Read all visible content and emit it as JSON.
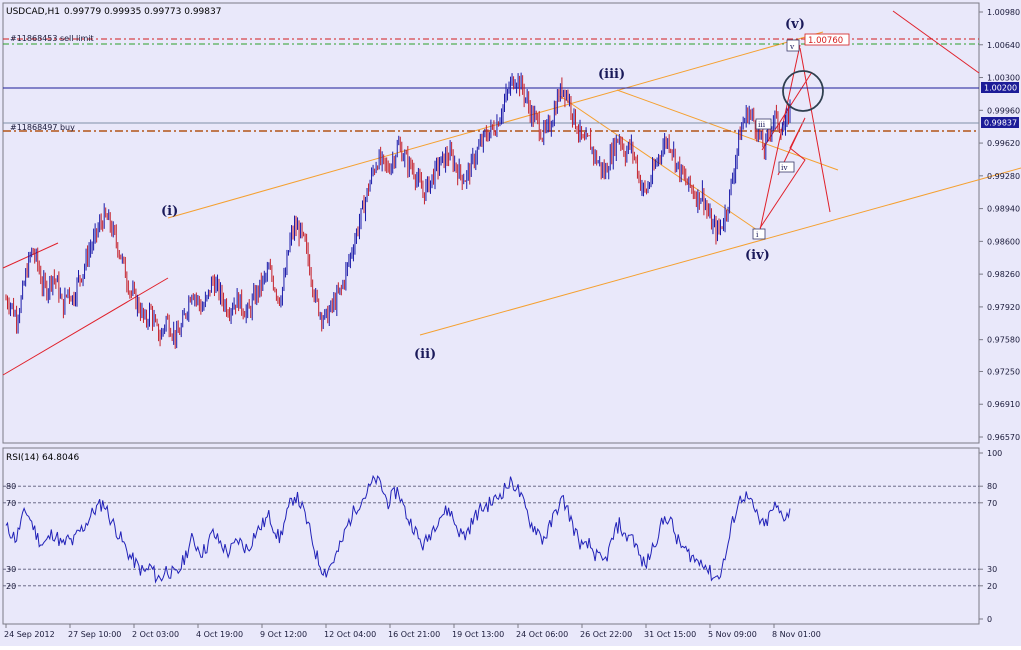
{
  "colors": {
    "background": "#e9e8fa",
    "frame": "#7a7a86",
    "bull_bar": "#1a1aa8",
    "bear_bar": "#c4202a",
    "channel": "#f5a030",
    "red_line": "#e0202a",
    "resistance": "#1c1c98",
    "rsi_line": "#2222b8",
    "rsi_level": "#5a5a78",
    "sell_limit": "#d41c1c",
    "sell_limit_2": "#2aa02a",
    "buy_line": "#b25418",
    "current_price_line": "#8090a8",
    "wave_label": "#1a1a5a",
    "circle": "#2f3f4f"
  },
  "header": {
    "symbol": "USDCAD,H1",
    "ohlc": "0.99779 0.99935 0.99773 0.99837"
  },
  "orders": {
    "sell_limit": "#11868453 sell limit",
    "buy": "#11868497 buy"
  },
  "price_tags": {
    "target": "1.00760",
    "resistance": "1.00200",
    "current": "0.99837"
  },
  "wave_labels": {
    "i": "(i)",
    "ii": "(ii)",
    "iii": "(iii)",
    "iv": "(iv)",
    "v": "(v)",
    "sub_i": "i",
    "sub_iii": "iii",
    "sub_iv": "iv",
    "sub_v": "v"
  },
  "rsi": {
    "title": "RSI(14) 64.8046",
    "left_levels": [
      "80",
      "70",
      "30",
      "20"
    ],
    "right_levels": [
      "100",
      "80",
      "70",
      "30",
      "20",
      "0"
    ]
  },
  "chart_data": {
    "type": "candlestick",
    "title": "USDCAD,H1",
    "y_ticks": [
      "1.00980",
      "1.00640",
      "1.00300",
      "0.99960",
      "0.99620",
      "0.99280",
      "0.98940",
      "0.98600",
      "0.98260",
      "0.97920",
      "0.97580",
      "0.97250",
      "0.96910",
      "0.96570"
    ],
    "ylim": [
      0.9657,
      1.0098
    ],
    "x_ticks": [
      "24 Sep 2012",
      "27 Sep 10:00",
      "2 Oct 03:00",
      "4 Oct 19:00",
      "9 Oct 12:00",
      "12 Oct 04:00",
      "16 Oct 21:00",
      "19 Oct 13:00",
      "24 Oct 06:00",
      "26 Oct 22:00",
      "31 Oct 15:00",
      "5 Nov 09:00",
      "8 Nov 01:00"
    ],
    "price_path": [
      0.98,
      0.9795,
      0.978,
      0.98,
      0.983,
      0.985,
      0.984,
      0.9815,
      0.981,
      0.9825,
      0.9815,
      0.979,
      0.981,
      0.98,
      0.982,
      0.983,
      0.985,
      0.986,
      0.9875,
      0.9885,
      0.988,
      0.9865,
      0.985,
      0.983,
      0.981,
      0.98,
      0.979,
      0.9775,
      0.979,
      0.977,
      0.976,
      0.978,
      0.977,
      0.976,
      0.977,
      0.979,
      0.981,
      0.98,
      0.979,
      0.98,
      0.982,
      0.981,
      0.98,
      0.979,
      0.9795,
      0.98,
      0.979,
      0.9785,
      0.98,
      0.981,
      0.982,
      0.983,
      0.9815,
      0.98,
      0.982,
      0.986,
      0.9875,
      0.987,
      0.9855,
      0.983,
      0.98,
      0.9785,
      0.978,
      0.979,
      0.98,
      0.981,
      0.983,
      0.985,
      0.987,
      0.989,
      0.991,
      0.993,
      0.9945,
      0.994,
      0.9935,
      0.9945,
      0.996,
      0.995,
      0.994,
      0.9935,
      0.992,
      0.991,
      0.992,
      0.993,
      0.994,
      0.9945,
      0.995,
      0.994,
      0.993,
      0.9925,
      0.9935,
      0.995,
      0.996,
      0.997,
      0.9975,
      0.998,
      0.9995,
      1.001,
      1.0025,
      1.003,
      1.002,
      1.0005,
      0.999,
      0.9985,
      0.997,
      0.9975,
      0.999,
      1.001,
      1.002,
      1.001,
      0.999,
      0.9975,
      0.996,
      0.9965,
      0.995,
      0.994,
      0.993,
      0.9945,
      0.996,
      0.997,
      0.995,
      0.996,
      0.9945,
      0.992,
      0.991,
      0.9925,
      0.994,
      0.9955,
      0.9965,
      0.996,
      0.994,
      0.993,
      0.992,
      0.9915,
      0.9905,
      0.991,
      0.989,
      0.9875,
      0.987,
      0.988,
      0.99,
      0.993,
      0.9965,
      0.9985,
      0.9995,
      0.9985,
      0.997,
      0.9955,
      0.9975,
      0.999,
      0.998,
      0.9975,
      1.0
    ],
    "rsi_path": [
      55,
      52,
      48,
      60,
      65,
      58,
      50,
      45,
      47,
      52,
      49,
      44,
      48,
      46,
      52,
      55,
      60,
      65,
      68,
      70,
      62,
      56,
      50,
      44,
      38,
      34,
      30,
      28,
      32,
      26,
      24,
      30,
      28,
      26,
      32,
      40,
      48,
      44,
      40,
      44,
      52,
      48,
      44,
      40,
      43,
      48,
      44,
      42,
      50,
      54,
      58,
      62,
      55,
      48,
      58,
      68,
      75,
      70,
      62,
      52,
      40,
      32,
      28,
      33,
      38,
      45,
      55,
      62,
      68,
      72,
      76,
      82,
      85,
      78,
      70,
      74,
      78,
      68,
      60,
      56,
      48,
      44,
      50,
      56,
      62,
      64,
      66,
      58,
      52,
      50,
      56,
      62,
      66,
      68,
      70,
      72,
      76,
      80,
      82,
      80,
      72,
      64,
      56,
      54,
      48,
      52,
      60,
      68,
      72,
      65,
      55,
      48,
      42,
      45,
      40,
      36,
      34,
      42,
      52,
      58,
      48,
      52,
      46,
      36,
      32,
      40,
      48,
      56,
      62,
      58,
      48,
      44,
      40,
      38,
      34,
      36,
      30,
      26,
      25,
      32,
      45,
      60,
      70,
      75,
      72,
      66,
      60,
      55,
      62,
      68,
      64,
      62,
      65
    ],
    "rsi_current": 64.8046,
    "rsi_ylim": [
      0,
      100
    ]
  }
}
